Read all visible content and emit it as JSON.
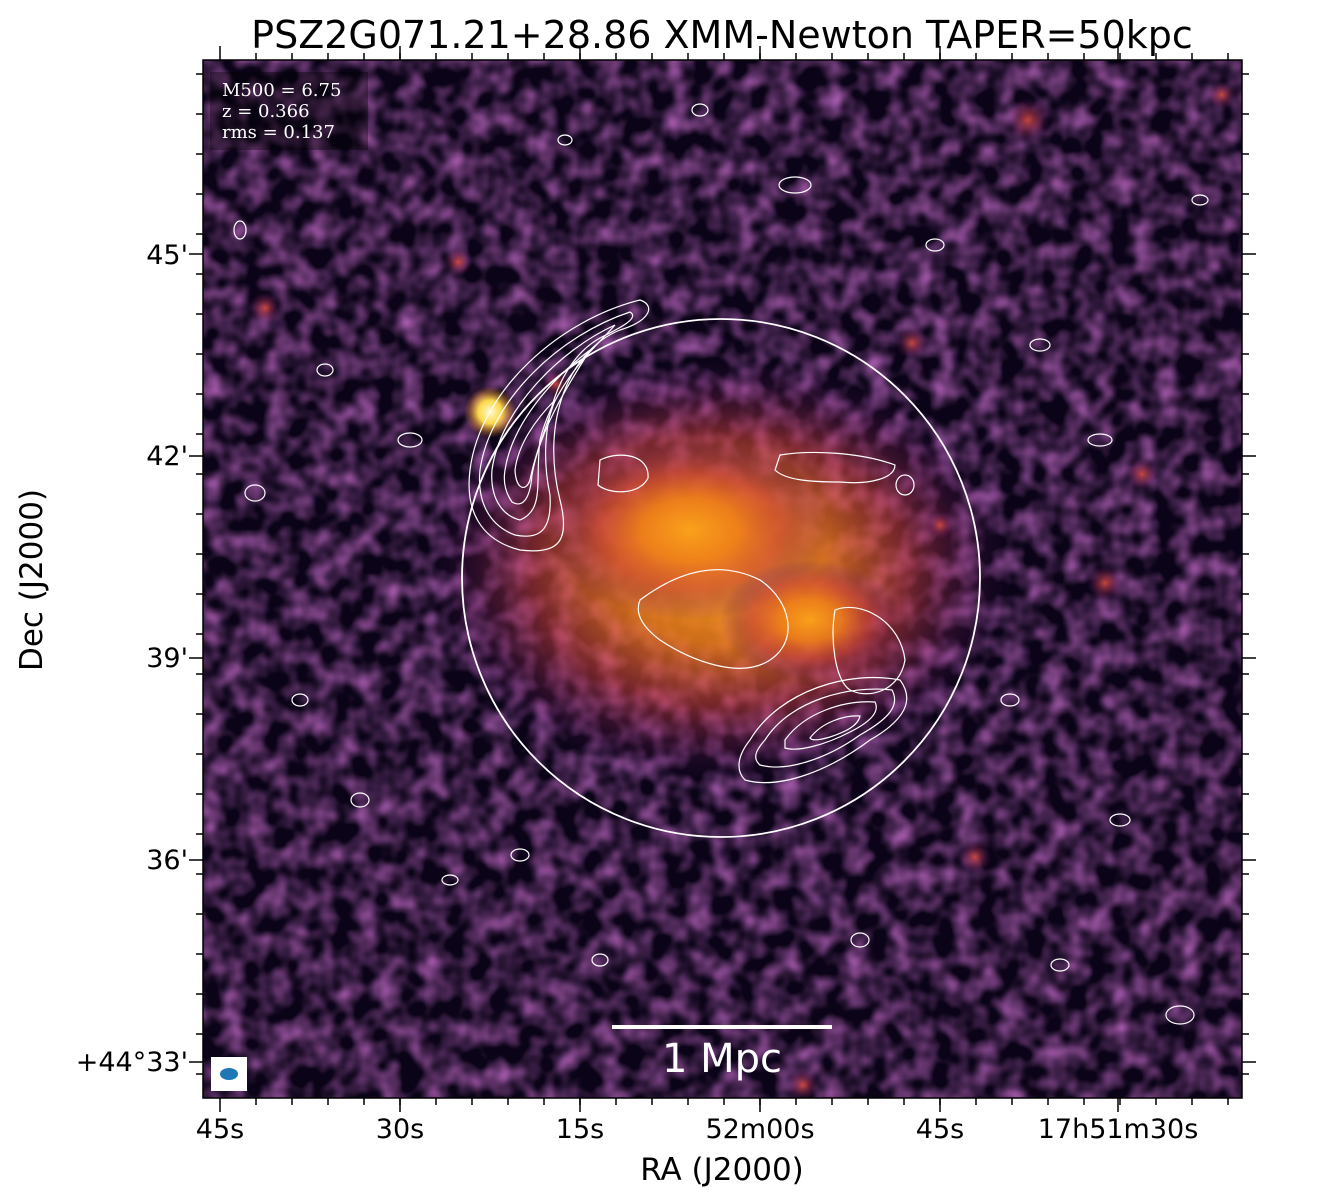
{
  "figure": {
    "title": "PSZ2G071.21+28.86 XMM-Newton TAPER=50kpc",
    "info_lines": [
      "M500 = 6.75",
      "z = 0.366",
      "rms = 0.137"
    ],
    "scale_bar_label": "1 Mpc",
    "x_axis_label": "RA (J2000)",
    "y_axis_label": "Dec (J2000)",
    "x_ticks": [
      "45s",
      "30s",
      "15s",
      "52m00s",
      "45s",
      "17h51m30s"
    ],
    "y_ticks": [
      "45'",
      "42'",
      "39'",
      "36'",
      "+44°33'"
    ],
    "colors": {
      "background": "#0b0418",
      "cluster_emission": "#f58d12",
      "contours": "#ffffff",
      "beam": "#1f77b4"
    },
    "colormap": "inferno"
  }
}
